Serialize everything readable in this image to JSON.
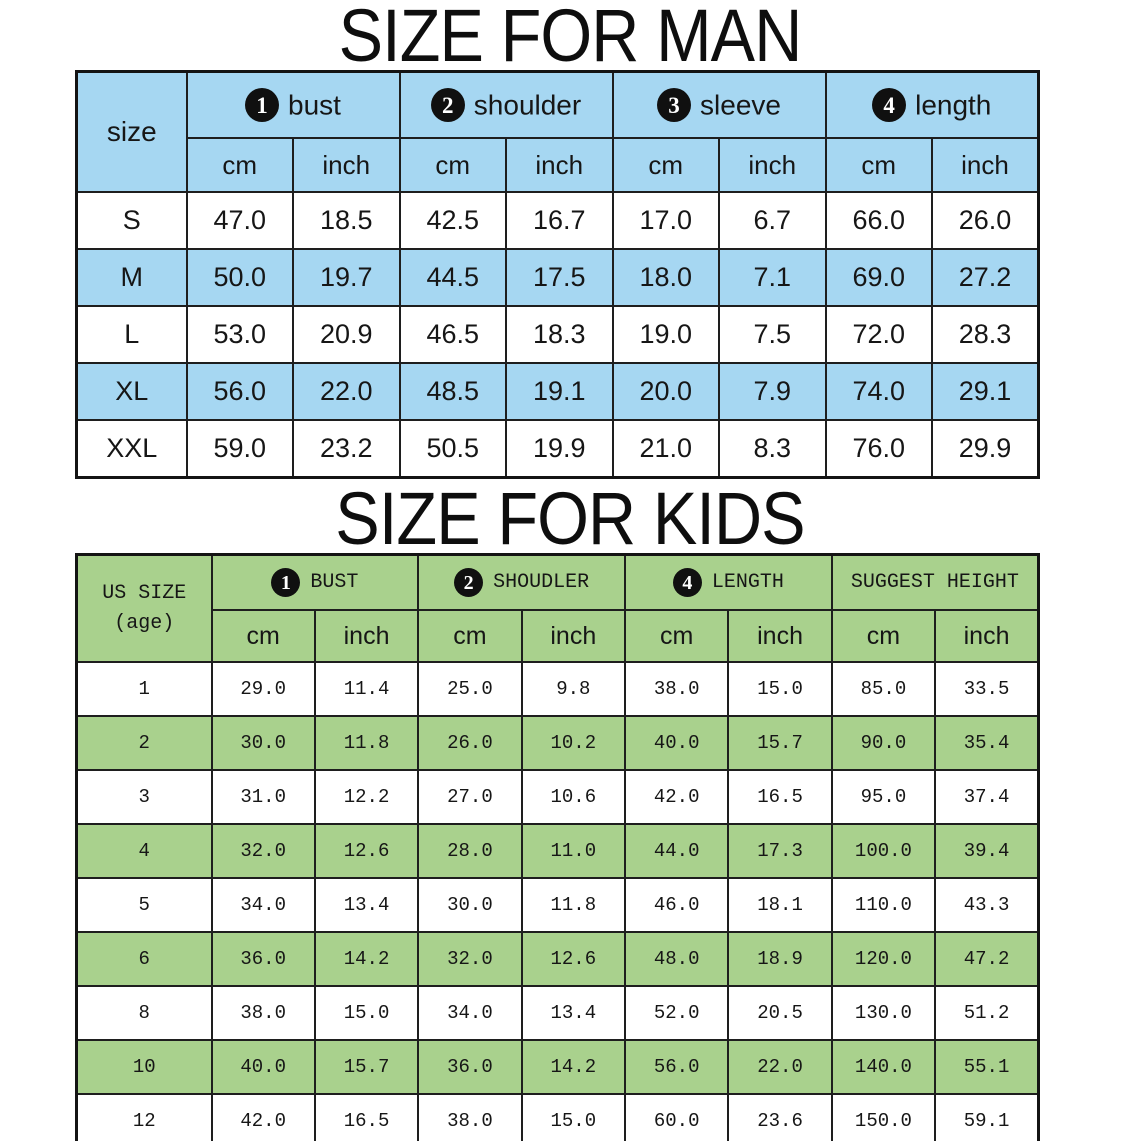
{
  "colors": {
    "man_accent": "#a6d7f2",
    "kids_accent": "#a9d18d",
    "badge_bg": "#101010",
    "badge_fg": "#ffffff"
  },
  "chart_data": [
    {
      "type": "table",
      "title": "SIZE FOR MAN",
      "corner_label": "size",
      "column_groups": [
        {
          "badge": "1",
          "label": "bust"
        },
        {
          "badge": "2",
          "label": "shoulder"
        },
        {
          "badge": "3",
          "label": "sleeve"
        },
        {
          "badge": "4",
          "label": "length"
        }
      ],
      "units": [
        "cm",
        "inch",
        "cm",
        "inch",
        "cm",
        "inch",
        "cm",
        "inch"
      ],
      "rows": [
        {
          "size": "S",
          "values": [
            "47.0",
            "18.5",
            "42.5",
            "16.7",
            "17.0",
            "6.7",
            "66.0",
            "26.0"
          ]
        },
        {
          "size": "M",
          "values": [
            "50.0",
            "19.7",
            "44.5",
            "17.5",
            "18.0",
            "7.1",
            "69.0",
            "27.2"
          ]
        },
        {
          "size": "L",
          "values": [
            "53.0",
            "20.9",
            "46.5",
            "18.3",
            "19.0",
            "7.5",
            "72.0",
            "28.3"
          ]
        },
        {
          "size": "XL",
          "values": [
            "56.0",
            "22.0",
            "48.5",
            "19.1",
            "20.0",
            "7.9",
            "74.0",
            "29.1"
          ]
        },
        {
          "size": "XXL",
          "values": [
            "59.0",
            "23.2",
            "50.5",
            "19.9",
            "21.0",
            "8.3",
            "76.0",
            "29.9"
          ]
        }
      ]
    },
    {
      "type": "table",
      "title": "SIZE FOR KIDS",
      "corner_label": "US SIZE",
      "corner_label_2": "(age)",
      "column_groups": [
        {
          "badge": "1",
          "label": "BUST"
        },
        {
          "badge": "2",
          "label": "SHOUDLER"
        },
        {
          "badge": "4",
          "label": "LENGTH"
        },
        {
          "badge": "",
          "label": "SUGGEST HEIGHT"
        }
      ],
      "units": [
        "cm",
        "inch",
        "cm",
        "inch",
        "cm",
        "inch",
        "cm",
        "inch"
      ],
      "rows": [
        {
          "size": "1",
          "values": [
            "29.0",
            "11.4",
            "25.0",
            "9.8",
            "38.0",
            "15.0",
            "85.0",
            "33.5"
          ]
        },
        {
          "size": "2",
          "values": [
            "30.0",
            "11.8",
            "26.0",
            "10.2",
            "40.0",
            "15.7",
            "90.0",
            "35.4"
          ]
        },
        {
          "size": "3",
          "values": [
            "31.0",
            "12.2",
            "27.0",
            "10.6",
            "42.0",
            "16.5",
            "95.0",
            "37.4"
          ]
        },
        {
          "size": "4",
          "values": [
            "32.0",
            "12.6",
            "28.0",
            "11.0",
            "44.0",
            "17.3",
            "100.0",
            "39.4"
          ]
        },
        {
          "size": "5",
          "values": [
            "34.0",
            "13.4",
            "30.0",
            "11.8",
            "46.0",
            "18.1",
            "110.0",
            "43.3"
          ]
        },
        {
          "size": "6",
          "values": [
            "36.0",
            "14.2",
            "32.0",
            "12.6",
            "48.0",
            "18.9",
            "120.0",
            "47.2"
          ]
        },
        {
          "size": "8",
          "values": [
            "38.0",
            "15.0",
            "34.0",
            "13.4",
            "52.0",
            "20.5",
            "130.0",
            "51.2"
          ]
        },
        {
          "size": "10",
          "values": [
            "40.0",
            "15.7",
            "36.0",
            "14.2",
            "56.0",
            "22.0",
            "140.0",
            "55.1"
          ]
        },
        {
          "size": "12",
          "values": [
            "42.0",
            "16.5",
            "38.0",
            "15.0",
            "60.0",
            "23.6",
            "150.0",
            "59.1"
          ]
        }
      ]
    }
  ]
}
